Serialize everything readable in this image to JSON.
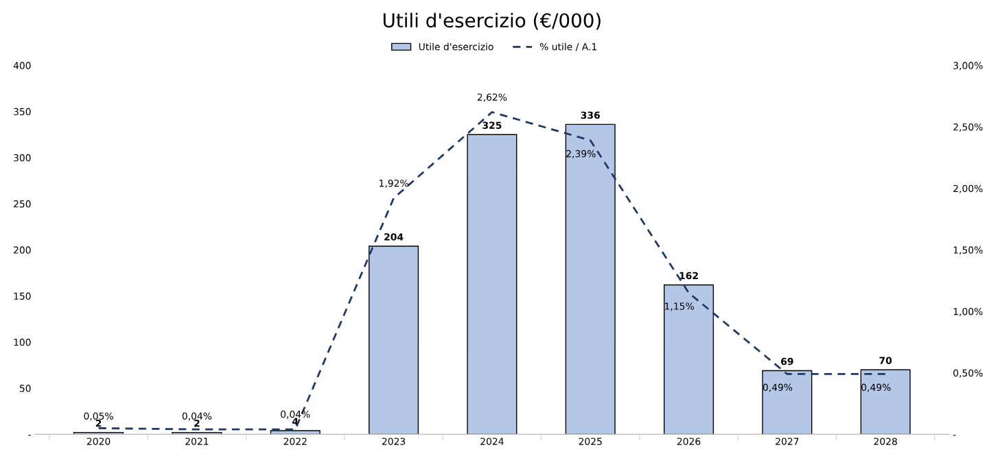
{
  "chart_data": {
    "type": "bar",
    "title": "Utili d'esercizio (€/000)",
    "categories": [
      "2020",
      "2021",
      "2022",
      "2023",
      "2024",
      "2025",
      "2026",
      "2027",
      "2028"
    ],
    "series": [
      {
        "name": "Utile d'esercizio",
        "color": "#b4c7e7",
        "values": [
          2,
          2,
          4,
          204,
          325,
          336,
          162,
          69,
          70
        ],
        "value_labels": [
          "2",
          "2",
          "4",
          "204",
          "325",
          "336",
          "162",
          "69",
          "70"
        ]
      },
      {
        "name": "% utile / A.1",
        "type": "line",
        "axis": "y2",
        "color": "#1f3864",
        "line_style": "dashed",
        "marker": "none",
        "values": [
          0.05,
          0.04,
          0.04,
          1.92,
          2.62,
          2.39,
          1.15,
          0.49,
          0.49
        ],
        "value_labels": [
          "0,05%",
          "0,04%",
          "0,04%",
          "1,92%",
          "2,62%",
          "2,39%",
          "1,15%",
          "0,49%",
          "0,49%"
        ]
      }
    ],
    "ylim": [
      0,
      400
    ],
    "yticks": [
      {
        "value": 0,
        "label": "-"
      },
      50,
      100,
      150,
      200,
      250,
      300,
      350,
      400
    ],
    "y2lim": [
      0,
      3
    ],
    "y2ticks": [
      {
        "value": 0,
        "label": "-"
      },
      {
        "value": 0.5,
        "label": "0,50%"
      },
      {
        "value": 1,
        "label": "1,00%"
      },
      {
        "value": 1.5,
        "label": "1,50%"
      },
      {
        "value": 2,
        "label": "2,00%"
      },
      {
        "value": 2.5,
        "label": "2,50%"
      },
      {
        "value": 3,
        "label": "3,00%"
      }
    ],
    "grid": false,
    "legend": "top"
  }
}
